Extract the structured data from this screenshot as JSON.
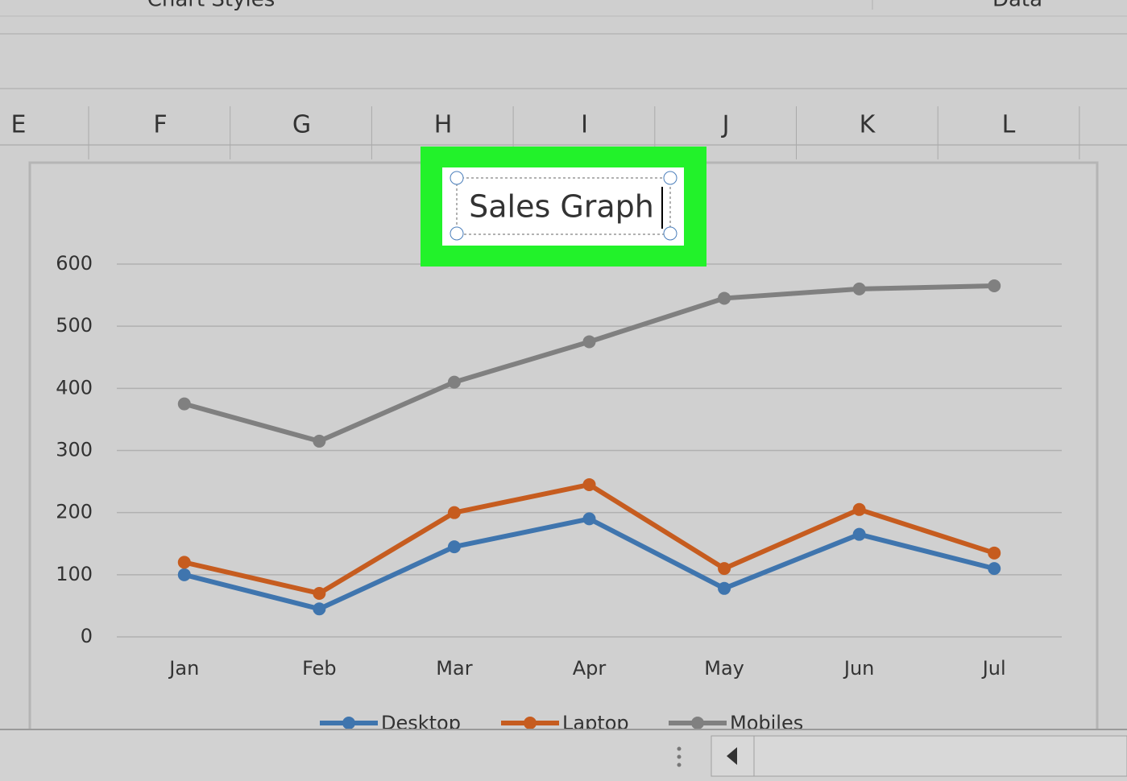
{
  "ribbon": {
    "groups": [
      "Chart Styles",
      "Data"
    ]
  },
  "columns": [
    "E",
    "F",
    "G",
    "H",
    "I",
    "J",
    "K",
    "L"
  ],
  "chart_data": {
    "type": "line",
    "title": "Sales Graph",
    "categories": [
      "Jan",
      "Feb",
      "Mar",
      "Apr",
      "May",
      "Jun",
      "Jul"
    ],
    "series": [
      {
        "name": "Desktop",
        "color": "#3f75ae",
        "values": [
          100,
          45,
          145,
          190,
          78,
          165,
          110
        ]
      },
      {
        "name": "Laptop",
        "color": "#c65c1f",
        "values": [
          120,
          70,
          200,
          245,
          110,
          205,
          135
        ]
      },
      {
        "name": "Mobiles",
        "color": "#808080",
        "values": [
          375,
          315,
          410,
          475,
          545,
          560,
          565
        ]
      }
    ],
    "ylim": [
      0,
      600
    ],
    "yticks": [
      0,
      100,
      200,
      300,
      400,
      500,
      600
    ],
    "grid": true
  }
}
